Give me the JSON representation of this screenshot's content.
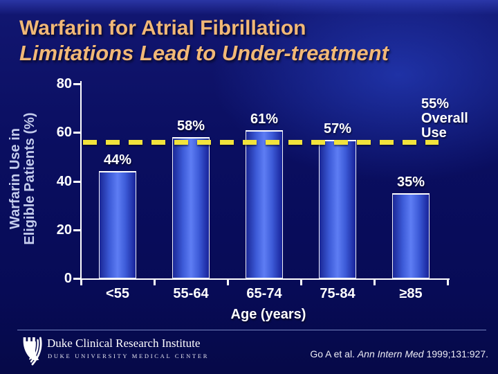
{
  "slide": {
    "title_line1": "Warfarin for Atrial Fibrillation",
    "title_line2": "Limitations Lead to Under-treatment",
    "title_color": "#F1B877",
    "background_color": "#0A0E5E"
  },
  "chart_data": {
    "type": "bar",
    "title": "",
    "categories": [
      "<55",
      "55-64",
      "65-74",
      "75-84",
      "≥85"
    ],
    "values": [
      44,
      58,
      61,
      57,
      35
    ],
    "bar_labels": [
      "44%",
      "58%",
      "61%",
      "57%",
      "35%"
    ],
    "xlabel": "Age (years)",
    "ylabel_lines": [
      "Warfarin Use in",
      "Eligible Patients (%)"
    ],
    "ylim": [
      0,
      80
    ],
    "yticks": [
      80,
      60,
      40,
      20,
      0
    ],
    "grid": false,
    "legend": "none",
    "reference_line": {
      "value": 55,
      "style": "dashed",
      "color": "#F2E33C",
      "label_lines": [
        "55%",
        "Overall",
        "Use"
      ]
    },
    "bar_fill_center": "#5E7DF4",
    "bar_fill_edge": "#1A2796",
    "bar_border_color": "#FFFFFF",
    "axis_color": "#FFFFFF",
    "tick_label_color": "#FFFFFF",
    "ylabel_color": "#C4CCEC"
  },
  "footer": {
    "logo_icon": "duke-shield",
    "org_name": "Duke Clinical Research Institute",
    "org_subtitle": "DUKE UNIVERSITY MEDICAL CENTER",
    "citation": {
      "prefix": "Go A et al. ",
      "journal": "Ann Intern Med",
      "suffix": " 1999;131:927."
    }
  }
}
